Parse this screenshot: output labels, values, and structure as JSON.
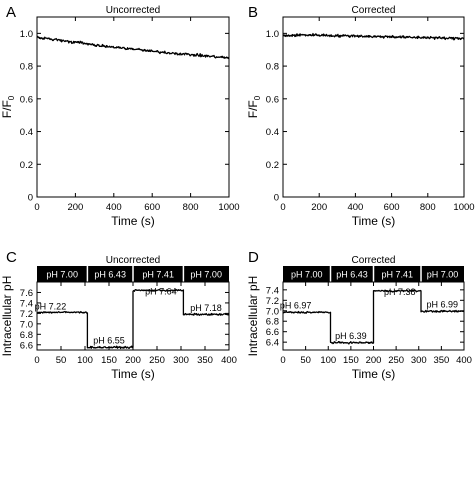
{
  "chart_data": [
    {
      "panel": "A",
      "type": "line",
      "title": "Uncorrected",
      "xlabel": "Time (s)",
      "ylabel": "F/F",
      "ylabel_sub": "0",
      "xlim": [
        0,
        1000
      ],
      "ylim": [
        0,
        1.1
      ],
      "xticks": [
        0,
        200,
        400,
        600,
        800,
        1000
      ],
      "yticks": [
        0.0,
        0.2,
        0.4,
        0.6,
        0.8,
        1.0
      ],
      "ytick_labels": [
        "0",
        "0.2",
        "0.4",
        "0.6",
        "0.8",
        "1.0"
      ],
      "series": [
        {
          "x": [
            0,
            100,
            200,
            300,
            400,
            500,
            600,
            700,
            800,
            900,
            1000
          ],
          "y": [
            0.975,
            0.96,
            0.945,
            0.93,
            0.915,
            0.905,
            0.89,
            0.88,
            0.87,
            0.86,
            0.85
          ]
        }
      ]
    },
    {
      "panel": "B",
      "type": "line",
      "title": "Corrected",
      "xlabel": "Time (s)",
      "ylabel": "F/F",
      "ylabel_sub": "0",
      "xlim": [
        0,
        1000
      ],
      "ylim": [
        0,
        1.1
      ],
      "xticks": [
        0,
        200,
        400,
        600,
        800,
        1000
      ],
      "yticks": [
        0.0,
        0.2,
        0.4,
        0.6,
        0.8,
        1.0
      ],
      "ytick_labels": [
        "0",
        "0.2",
        "0.4",
        "0.6",
        "0.8",
        "1.0"
      ],
      "series": [
        {
          "x": [
            0,
            100,
            200,
            300,
            400,
            500,
            600,
            700,
            800,
            900,
            1000
          ],
          "y": [
            0.985,
            0.99,
            0.99,
            0.985,
            0.985,
            0.98,
            0.98,
            0.975,
            0.975,
            0.97,
            0.97
          ]
        }
      ]
    },
    {
      "panel": "C",
      "type": "line",
      "title": "Uncorrected",
      "xlabel": "Time (s)",
      "ylabel": "Intracellular pH",
      "xlim": [
        0,
        400
      ],
      "ylim": [
        6.5,
        7.8
      ],
      "xticks": [
        0,
        50,
        100,
        150,
        200,
        250,
        300,
        350,
        400
      ],
      "yticks": [
        6.6,
        6.8,
        7.0,
        7.2,
        7.4,
        7.6
      ],
      "ytick_labels": [
        "6.6",
        "6.8",
        "7.0",
        "7.2",
        "7.4",
        "7.6"
      ],
      "bar": [
        "pH 7.00",
        "pH 6.43",
        "pH 7.41",
        "pH 7.00"
      ],
      "segments": [
        {
          "x": [
            0,
            105
          ],
          "y": 7.22
        },
        {
          "x": [
            105,
            200
          ],
          "y": 6.55
        },
        {
          "x": [
            200,
            305
          ],
          "y": 7.64
        },
        {
          "x": [
            305,
            400
          ],
          "y": 7.18
        }
      ],
      "annotations": [
        {
          "text": "pH 7.22",
          "x": 28,
          "y": 7.27
        },
        {
          "text": "pH 6.55",
          "x": 150,
          "y": 6.62
        },
        {
          "text": "pH 7.64",
          "x": 258,
          "y": 7.56
        },
        {
          "text": "pH 7.18",
          "x": 352,
          "y": 7.25
        }
      ]
    },
    {
      "panel": "D",
      "type": "line",
      "title": "Corrected",
      "xlabel": "Time (s)",
      "ylabel": "Intracellular pH",
      "xlim": [
        0,
        400
      ],
      "ylim": [
        6.25,
        7.55
      ],
      "xticks": [
        0,
        50,
        100,
        150,
        200,
        250,
        300,
        350,
        400
      ],
      "yticks": [
        6.4,
        6.6,
        6.8,
        7.0,
        7.2,
        7.4
      ],
      "ytick_labels": [
        "6.4",
        "6.6",
        "6.8",
        "7.0",
        "7.2",
        "7.4"
      ],
      "bar": [
        "pH 7.00",
        "pH 6.43",
        "pH 7.41",
        "pH 7.00"
      ],
      "segments": [
        {
          "x": [
            0,
            105
          ],
          "y": 6.97
        },
        {
          "x": [
            105,
            200
          ],
          "y": 6.39
        },
        {
          "x": [
            200,
            305
          ],
          "y": 7.38
        },
        {
          "x": [
            305,
            400
          ],
          "y": 6.99
        }
      ],
      "annotations": [
        {
          "text": "pH 6.97",
          "x": 28,
          "y": 7.04
        },
        {
          "text": "pH 6.39",
          "x": 150,
          "y": 6.46
        },
        {
          "text": "pH 7.38",
          "x": 258,
          "y": 7.3
        },
        {
          "text": "pH 6.99",
          "x": 352,
          "y": 7.06
        }
      ]
    }
  ]
}
